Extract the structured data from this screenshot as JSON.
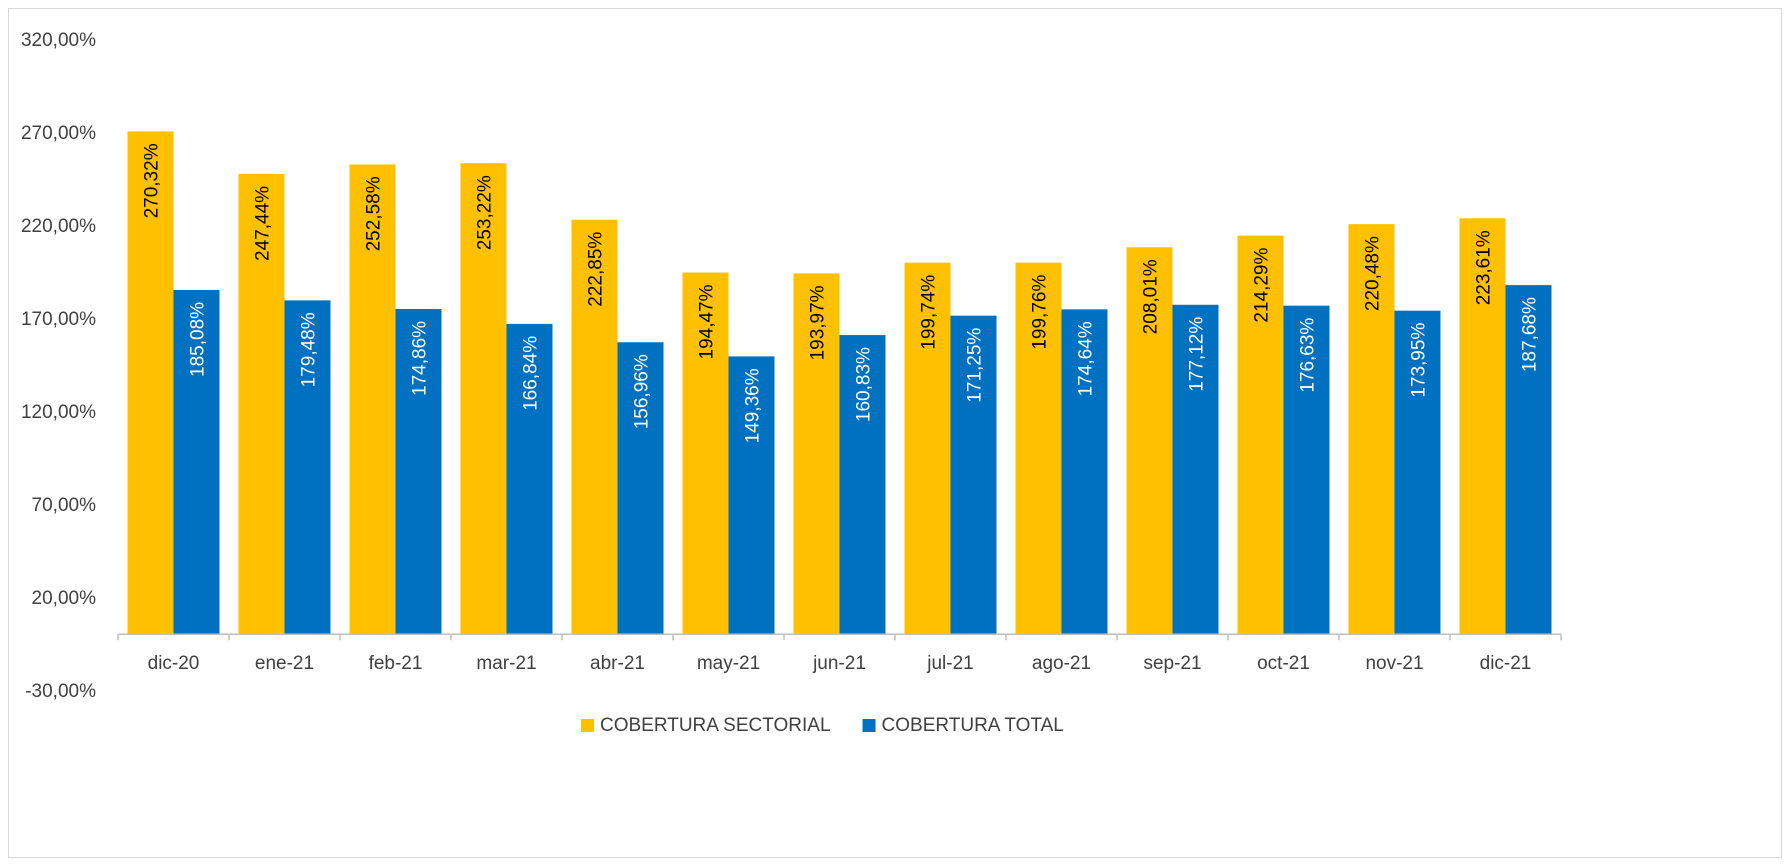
{
  "chart_data": {
    "type": "bar",
    "categories": [
      "dic-20",
      "ene-21",
      "feb-21",
      "mar-21",
      "abr-21",
      "may-21",
      "jun-21",
      "jul-21",
      "ago-21",
      "sep-21",
      "oct-21",
      "nov-21",
      "dic-21"
    ],
    "series": [
      {
        "name": "COBERTURA SECTORIAL",
        "color": "#FFC000",
        "label_color": "#000000",
        "values": [
          270.32,
          247.44,
          252.58,
          253.22,
          222.85,
          194.47,
          193.97,
          199.74,
          199.76,
          208.01,
          214.29,
          220.48,
          223.61
        ],
        "labels": [
          "270,32%",
          "247,44%",
          "252,58%",
          "253,22%",
          "222,85%",
          "194,47%",
          "193,97%",
          "199,74%",
          "199,76%",
          "208,01%",
          "214,29%",
          "220,48%",
          "223,61%"
        ]
      },
      {
        "name": "COBERTURA TOTAL",
        "color": "#0070C0",
        "label_color": "#ffffff",
        "values": [
          185.08,
          179.48,
          174.86,
          166.84,
          156.96,
          149.36,
          160.83,
          171.25,
          174.64,
          177.12,
          176.63,
          173.95,
          187.68
        ],
        "labels": [
          "185,08%",
          "179,48%",
          "174,86%",
          "166,84%",
          "156,96%",
          "149,36%",
          "160,83%",
          "171,25%",
          "174,64%",
          "177,12%",
          "176,63%",
          "173,95%",
          "187,68%"
        ]
      }
    ],
    "y_ticks": [
      {
        "value": 320,
        "label": "320,00%"
      },
      {
        "value": 270,
        "label": "270,00%"
      },
      {
        "value": 220,
        "label": "220,00%"
      },
      {
        "value": 170,
        "label": "170,00%"
      },
      {
        "value": 120,
        "label": "120,00%"
      },
      {
        "value": 70,
        "label": "70,00%"
      },
      {
        "value": 20,
        "label": "20,00%"
      },
      {
        "value": -30,
        "label": "-30,00%"
      }
    ],
    "ylim": [
      -30,
      320
    ],
    "bar_baseline": 0,
    "grid": false,
    "legend_position": "bottom-center",
    "title": "",
    "xlabel": "",
    "ylabel": ""
  }
}
